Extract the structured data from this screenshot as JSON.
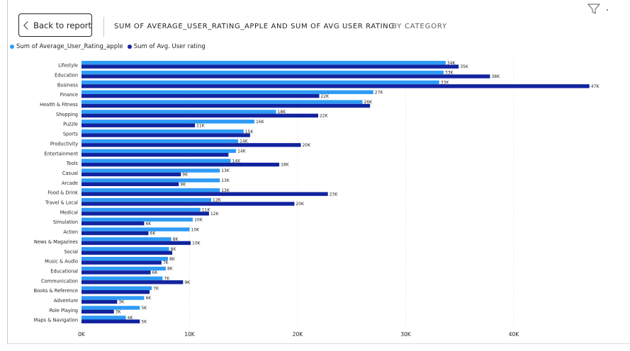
{
  "header": {
    "back_label": "Back to report",
    "title": "SUM OF AVERAGE_USER_RATING_APPLE AND SUM OF AVG USER RATING",
    "subtitle": "BY CATEGORY"
  },
  "colors": {
    "series_apple": "#2e9bf6",
    "series_avg": "#12239e",
    "gridline": "#e1e1e1",
    "text": "#252423"
  },
  "icons": {
    "back": "chevron-left-icon",
    "filter": "filter-icon"
  },
  "chart_data": {
    "type": "bar",
    "orientation": "horizontal",
    "title": "SUM OF AVERAGE_USER_RATING_APPLE AND SUM OF AVG USER RATING",
    "subtitle": "BY CATEGORY",
    "categories": [
      "Lifestyle",
      "Education",
      "Business",
      "Finance",
      "Health & Fitness",
      "Shopping",
      "Puzzle",
      "Sports",
      "Productivity",
      "Entertainment",
      "Tools",
      "Casual",
      "Arcade",
      "Food & Drink",
      "Travel & Local",
      "Medical",
      "Simulation",
      "Action",
      "News & Magazines",
      "Social",
      "Music & Audio",
      "Educational",
      "Communication",
      "Books & Reference",
      "Adventure",
      "Role Playing",
      "Maps & Navigation"
    ],
    "series": [
      {
        "name": "Sum of Average_User_Rating_apple",
        "values": [
          33700,
          33500,
          33100,
          27000,
          26000,
          18000,
          16000,
          15000,
          14500,
          14300,
          13800,
          12800,
          12800,
          12800,
          12000,
          11000,
          10300,
          10000,
          8300,
          8100,
          8000,
          7800,
          7500,
          6500,
          5800,
          5400,
          4100
        ],
        "labels": [
          "34K",
          "33K",
          "33K",
          "27K",
          "26K",
          "18K",
          "16K",
          "15K",
          "14K",
          "14K",
          "14K",
          "13K",
          "13K",
          "13K",
          "12K",
          "11K",
          "10K",
          "10K",
          "8K",
          "8K",
          "8K",
          "8K",
          "7K",
          "7K",
          "6K",
          "5K",
          "4K"
        ]
      },
      {
        "name": "Sum of Avg. User rating",
        "values": [
          34900,
          37800,
          47000,
          22000,
          26700,
          21900,
          10500,
          15600,
          20300,
          13600,
          18300,
          9200,
          9000,
          22800,
          19700,
          11800,
          5800,
          6200,
          10100,
          8400,
          7400,
          6400,
          9400,
          6300,
          3300,
          3000,
          5400
        ],
        "labels": [
          "35K",
          "38K",
          "47K",
          "22K",
          "",
          "22K",
          "11K",
          "",
          "20K",
          "",
          "18K",
          "9K",
          "9K",
          "23K",
          "20K",
          "12K",
          "6K",
          "6K",
          "10K",
          "",
          "7K",
          "6K",
          "9K",
          "",
          "3K",
          "3K",
          "5K"
        ]
      }
    ],
    "x_ticks": [
      "0K",
      "10K",
      "20K",
      "30K",
      "40K"
    ],
    "xlim": [
      0,
      47000
    ],
    "grid": true,
    "legend_position": "top-left"
  }
}
